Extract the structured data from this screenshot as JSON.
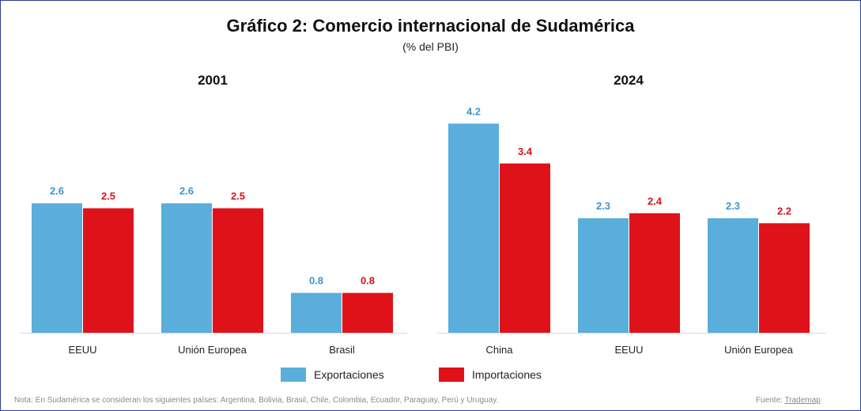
{
  "title": "Gráfico 2: Comercio internacional de Sudamérica",
  "subtitle": "(% del PBI)",
  "colors": {
    "exports": "#5aaedb",
    "imports": "#df121a",
    "exports_label": "#3c95cf",
    "imports_label": "#d8121a"
  },
  "legend": {
    "exports": "Exportaciones",
    "imports": "Importaciones"
  },
  "note": "Nota: En Sudamérica se consideran los siguientes países: Argentina, Bolivia, Brasil, Chile, Colombia, Ecuador, Paraguay, Perú y Uruguay.",
  "source": {
    "prefix": "Fuente:",
    "link": "Trademap"
  },
  "chart_data": [
    {
      "type": "bar",
      "title": "2001",
      "categories": [
        "EEUU",
        "Unión Europea",
        "Brasil"
      ],
      "series": [
        {
          "name": "Exportaciones",
          "values": [
            2.6,
            2.6,
            0.8
          ]
        },
        {
          "name": "Importaciones",
          "values": [
            2.5,
            2.5,
            0.8
          ]
        }
      ],
      "ylabel": "% del PBI",
      "ylim": [
        0,
        4.6
      ]
    },
    {
      "type": "bar",
      "title": "2024",
      "categories": [
        "China",
        "EEUU",
        "Unión Europea"
      ],
      "series": [
        {
          "name": "Exportaciones",
          "values": [
            4.2,
            2.3,
            2.3
          ]
        },
        {
          "name": "Importaciones",
          "values": [
            3.4,
            2.4,
            2.2
          ]
        }
      ],
      "ylabel": "% del PBI",
      "ylim": [
        0,
        4.6
      ]
    }
  ]
}
